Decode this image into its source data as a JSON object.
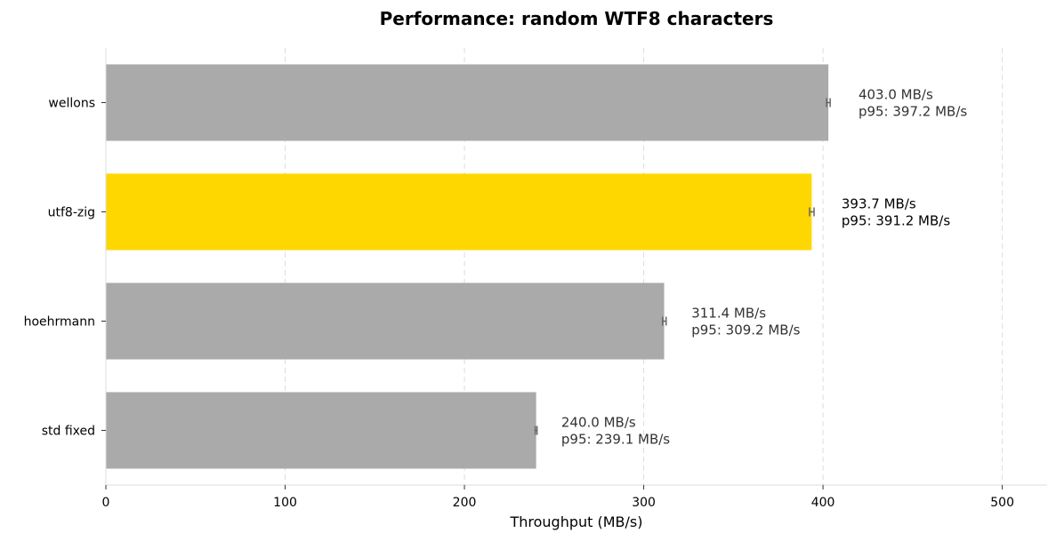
{
  "chart_data": {
    "type": "bar",
    "orientation": "horizontal",
    "title": "Performance: random WTF8 characters",
    "xlabel": "Throughput (MB/s)",
    "ylabel": "",
    "xlim": [
      0,
      525
    ],
    "xticks": [
      0,
      100,
      200,
      300,
      400,
      500
    ],
    "grid": "vertical dashed",
    "categories": [
      "wellons",
      "utf8-zig",
      "hoehrmann",
      "std fixed"
    ],
    "values": [
      403.0,
      393.7,
      311.4,
      240.0
    ],
    "p95": [
      397.2,
      391.2,
      309.2,
      239.1
    ],
    "error_low": [
      402.0,
      392.5,
      310.5,
      239.5
    ],
    "error_high": [
      404.0,
      395.0,
      312.5,
      240.5
    ],
    "value_labels": [
      "403.0 MB/s",
      "393.7 MB/s",
      "311.4 MB/s",
      "240.0 MB/s"
    ],
    "p95_labels": [
      "p95: 397.2 MB/s",
      "p95: 391.2 MB/s",
      "p95: 309.2 MB/s",
      "p95: 239.1 MB/s"
    ],
    "colors": [
      "#aaaaaa",
      "#ffd700",
      "#aaaaaa",
      "#aaaaaa"
    ],
    "label_colors": [
      "#333333",
      "#000000",
      "#333333",
      "#333333"
    ],
    "highlight": "utf8-zig"
  }
}
